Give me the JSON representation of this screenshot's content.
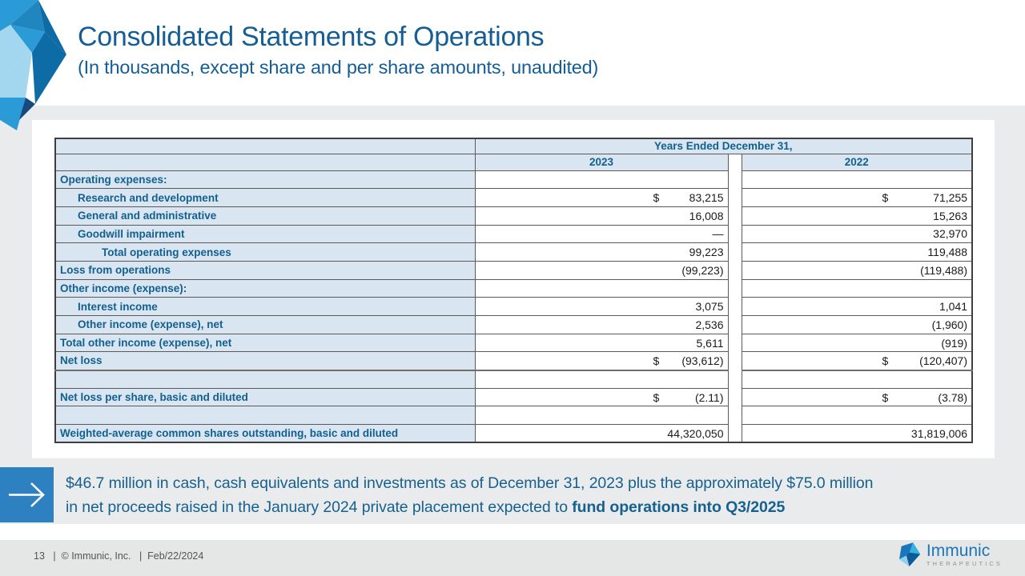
{
  "slide": {
    "title": "Consolidated Statements of Operations",
    "subtitle": "(In thousands, except share and per share amounts, unaudited)"
  },
  "table": {
    "col_group_header": "Years Ended December 31,",
    "year_headers": [
      "2023",
      "2022"
    ],
    "rows": [
      {
        "label": "Operating expenses:",
        "indent": 0,
        "v2023": "",
        "v2022": ""
      },
      {
        "label": "Research and development",
        "indent": 1,
        "d2023": "$",
        "v2023": "83,215",
        "d2022": "$",
        "v2022": "71,255"
      },
      {
        "label": "General and administrative",
        "indent": 1,
        "v2023": "16,008",
        "v2022": "15,263"
      },
      {
        "label": "Goodwill impairment",
        "indent": 1,
        "v2023": "—",
        "v2022": "32,970"
      },
      {
        "label": "Total operating expenses",
        "indent": 2,
        "v2023": "99,223",
        "v2022": "119,488"
      },
      {
        "label": "Loss from operations",
        "indent": 0,
        "v2023": "(99,223)",
        "v2022": "(119,488)"
      },
      {
        "label": "Other income (expense):",
        "indent": 0,
        "v2023": "",
        "v2022": ""
      },
      {
        "label": "Interest income",
        "indent": 1,
        "v2023": "3,075",
        "v2022": "1,041"
      },
      {
        "label": "Other income (expense), net",
        "indent": 1,
        "v2023": "2,536",
        "v2022": "(1,960)"
      },
      {
        "label": "Total other income (expense), net",
        "indent": 0,
        "v2023": "5,611",
        "v2022": "(919)"
      },
      {
        "label": "Net loss",
        "indent": 0,
        "d2023": "$",
        "v2023": "(93,612)",
        "d2022": "$",
        "v2022": "(120,407)",
        "thick_bottom": true
      },
      {
        "label": "",
        "indent": 0,
        "v2023": "",
        "v2022": ""
      },
      {
        "label": "Net loss per share, basic and diluted",
        "indent": 0,
        "d2023": "$",
        "v2023": "(2.11)",
        "d2022": "$",
        "v2022": "(3.78)"
      },
      {
        "label": "",
        "indent": 0,
        "v2023": "",
        "v2022": ""
      },
      {
        "label": "Weighted-average common shares outstanding, basic and diluted",
        "indent": 0,
        "v2023": "44,320,050",
        "v2022": "31,819,006"
      }
    ]
  },
  "callout": {
    "line1": "$46.7 million in cash, cash equivalents and investments as of December 31, 2023 plus the approximately $75.0 million",
    "line2_regular": "in net proceeds raised in the January 2024 private placement expected to ",
    "line2_bold": "fund operations into Q3/2025"
  },
  "footer": {
    "text": "13   |  © Immunic, Inc.   |  Feb/22/2024",
    "page_number": "13",
    "copyright": "© Immunic, Inc.",
    "date": "Feb/22/2024",
    "logo_name": "Immunic",
    "logo_tagline": "THERAPEUTICS"
  },
  "colors": {
    "accent_blue": "#2e81c1",
    "title_blue": "#155e95",
    "table_header_bg": "#d9e5f1",
    "table_label_text": "#12608f",
    "band_gray": "#e9ebec",
    "footer_gray": "#e5e7e7",
    "logo_blue": "#1b76bc"
  }
}
